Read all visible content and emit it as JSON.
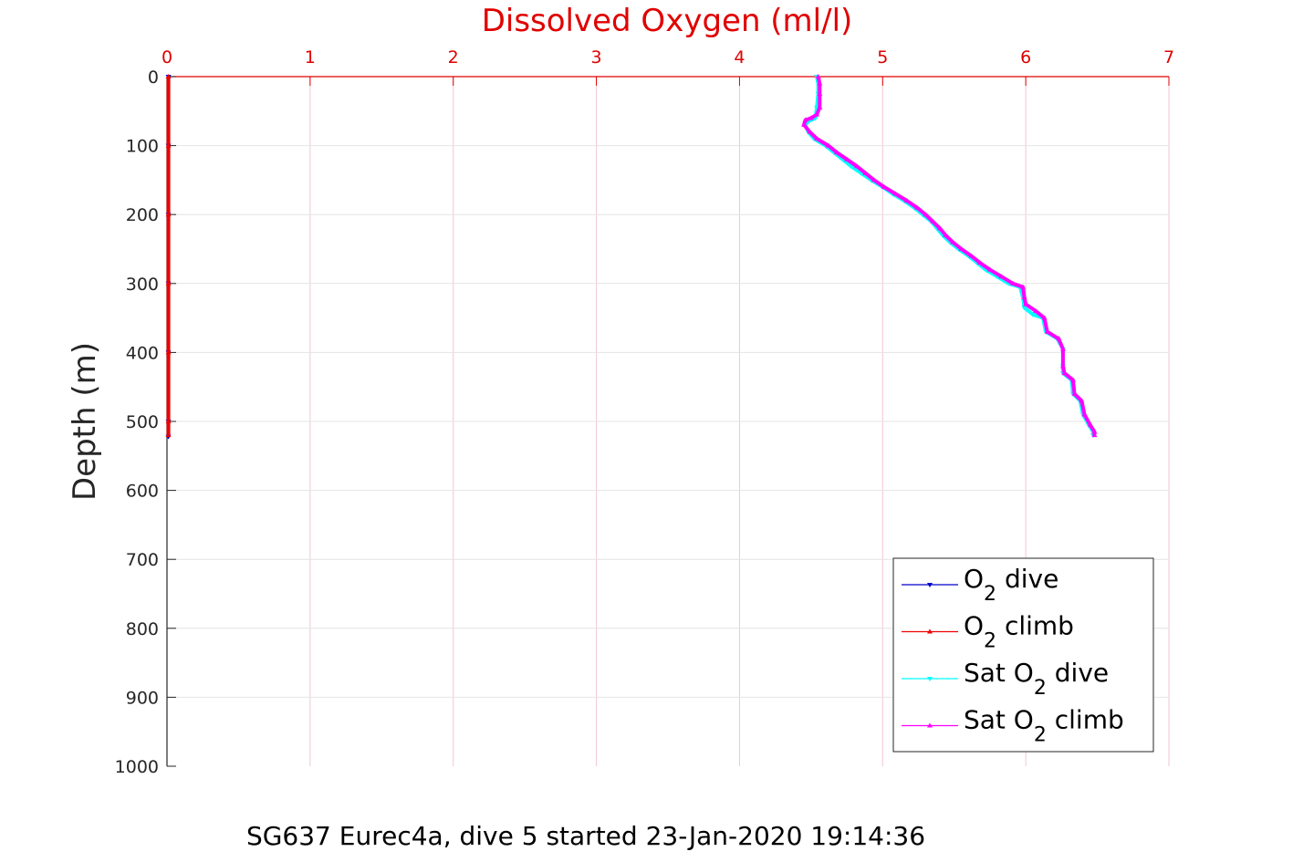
{
  "chart_data": {
    "type": "line",
    "title": "Dissolved Oxygen (ml/l)",
    "subtitle": "SG637 Eurec4a, dive 5 started 23-Jan-2020 19:14:36",
    "xlabel": "Dissolved Oxygen (ml/l)",
    "ylabel": "Depth (m)",
    "xlim": [
      0,
      7
    ],
    "ylim": [
      0,
      1000
    ],
    "y_reversed": true,
    "x_axis_position": "top",
    "xticks": [
      "0",
      "1",
      "2",
      "3",
      "4",
      "5",
      "6",
      "7"
    ],
    "yticks": [
      "0",
      "100",
      "200",
      "300",
      "400",
      "500",
      "600",
      "700",
      "800",
      "900",
      "1000"
    ],
    "grid": true,
    "legend_position": "bottom-right",
    "colors": {
      "x_axis": "#e00000",
      "grid": "#f2c6d3",
      "o2_dive": "#0000cc",
      "o2_climb": "#ee0000",
      "sat_dive": "#00ffff",
      "sat_climb": "#ff00ff"
    },
    "series": [
      {
        "name": "O2 dive",
        "legend_base": "O",
        "legend_sub": "2",
        "legend_suffix": " dive",
        "color": "#0000cc",
        "marker": "triangle-down",
        "points": [
          [
            0.01,
            0
          ],
          [
            0.01,
            100
          ],
          [
            0.01,
            200
          ],
          [
            0.01,
            300
          ],
          [
            0.01,
            400
          ],
          [
            0.01,
            500
          ],
          [
            0.01,
            522
          ]
        ]
      },
      {
        "name": "O2 climb",
        "legend_base": "O",
        "legend_sub": "2",
        "legend_suffix": " climb",
        "color": "#ee0000",
        "marker": "triangle-up",
        "points": [
          [
            0.01,
            0
          ],
          [
            0.01,
            100
          ],
          [
            0.01,
            200
          ],
          [
            0.01,
            300
          ],
          [
            0.01,
            400
          ],
          [
            0.01,
            500
          ],
          [
            0.01,
            520
          ]
        ]
      },
      {
        "name": "Sat O2 dive",
        "legend_base": "Sat O",
        "legend_sub": "2",
        "legend_suffix": " dive",
        "color": "#00ffff",
        "marker": "triangle-down",
        "points": [
          [
            4.54,
            0
          ],
          [
            4.55,
            10
          ],
          [
            4.55,
            25
          ],
          [
            4.54,
            45
          ],
          [
            4.53,
            60
          ],
          [
            4.48,
            65
          ],
          [
            4.46,
            70
          ],
          [
            4.48,
            80
          ],
          [
            4.52,
            90
          ],
          [
            4.6,
            100
          ],
          [
            4.66,
            110
          ],
          [
            4.72,
            120
          ],
          [
            4.78,
            130
          ],
          [
            4.85,
            140
          ],
          [
            4.92,
            150
          ],
          [
            5.0,
            160
          ],
          [
            5.07,
            170
          ],
          [
            5.15,
            180
          ],
          [
            5.22,
            190
          ],
          [
            5.28,
            200
          ],
          [
            5.34,
            210
          ],
          [
            5.38,
            220
          ],
          [
            5.42,
            230
          ],
          [
            5.47,
            240
          ],
          [
            5.53,
            250
          ],
          [
            5.6,
            260
          ],
          [
            5.66,
            270
          ],
          [
            5.72,
            280
          ],
          [
            5.8,
            290
          ],
          [
            5.88,
            300
          ],
          [
            5.96,
            305
          ],
          [
            5.98,
            320
          ],
          [
            5.99,
            335
          ],
          [
            6.05,
            345
          ],
          [
            6.12,
            350
          ],
          [
            6.14,
            370
          ],
          [
            6.22,
            380
          ],
          [
            6.26,
            395
          ],
          [
            6.26,
            420
          ],
          [
            6.26,
            430
          ],
          [
            6.32,
            440
          ],
          [
            6.33,
            460
          ],
          [
            6.38,
            470
          ],
          [
            6.4,
            490
          ],
          [
            6.44,
            505
          ],
          [
            6.47,
            515
          ],
          [
            6.47,
            520
          ]
        ]
      },
      {
        "name": "Sat O2 climb",
        "legend_base": "Sat O",
        "legend_sub": "2",
        "legend_suffix": " climb",
        "color": "#ff00ff",
        "marker": "triangle-up",
        "points": [
          [
            4.55,
            0
          ],
          [
            4.56,
            10
          ],
          [
            4.56,
            25
          ],
          [
            4.56,
            45
          ],
          [
            4.54,
            55
          ],
          [
            4.5,
            60
          ],
          [
            4.46,
            63
          ],
          [
            4.45,
            70
          ],
          [
            4.49,
            80
          ],
          [
            4.54,
            90
          ],
          [
            4.62,
            100
          ],
          [
            4.68,
            110
          ],
          [
            4.75,
            120
          ],
          [
            4.82,
            130
          ],
          [
            4.88,
            140
          ],
          [
            4.94,
            150
          ],
          [
            5.01,
            160
          ],
          [
            5.09,
            170
          ],
          [
            5.17,
            180
          ],
          [
            5.24,
            190
          ],
          [
            5.3,
            200
          ],
          [
            5.35,
            210
          ],
          [
            5.4,
            220
          ],
          [
            5.44,
            230
          ],
          [
            5.49,
            240
          ],
          [
            5.55,
            250
          ],
          [
            5.62,
            260
          ],
          [
            5.68,
            270
          ],
          [
            5.75,
            280
          ],
          [
            5.83,
            290
          ],
          [
            5.91,
            300
          ],
          [
            5.98,
            305
          ],
          [
            5.99,
            320
          ],
          [
            6.0,
            330
          ],
          [
            6.07,
            340
          ],
          [
            6.13,
            350
          ],
          [
            6.15,
            370
          ],
          [
            6.23,
            380
          ],
          [
            6.26,
            395
          ],
          [
            6.26,
            420
          ],
          [
            6.27,
            430
          ],
          [
            6.33,
            440
          ],
          [
            6.34,
            460
          ],
          [
            6.39,
            470
          ],
          [
            6.41,
            490
          ],
          [
            6.45,
            505
          ],
          [
            6.48,
            515
          ],
          [
            6.48,
            520
          ]
        ]
      }
    ]
  }
}
